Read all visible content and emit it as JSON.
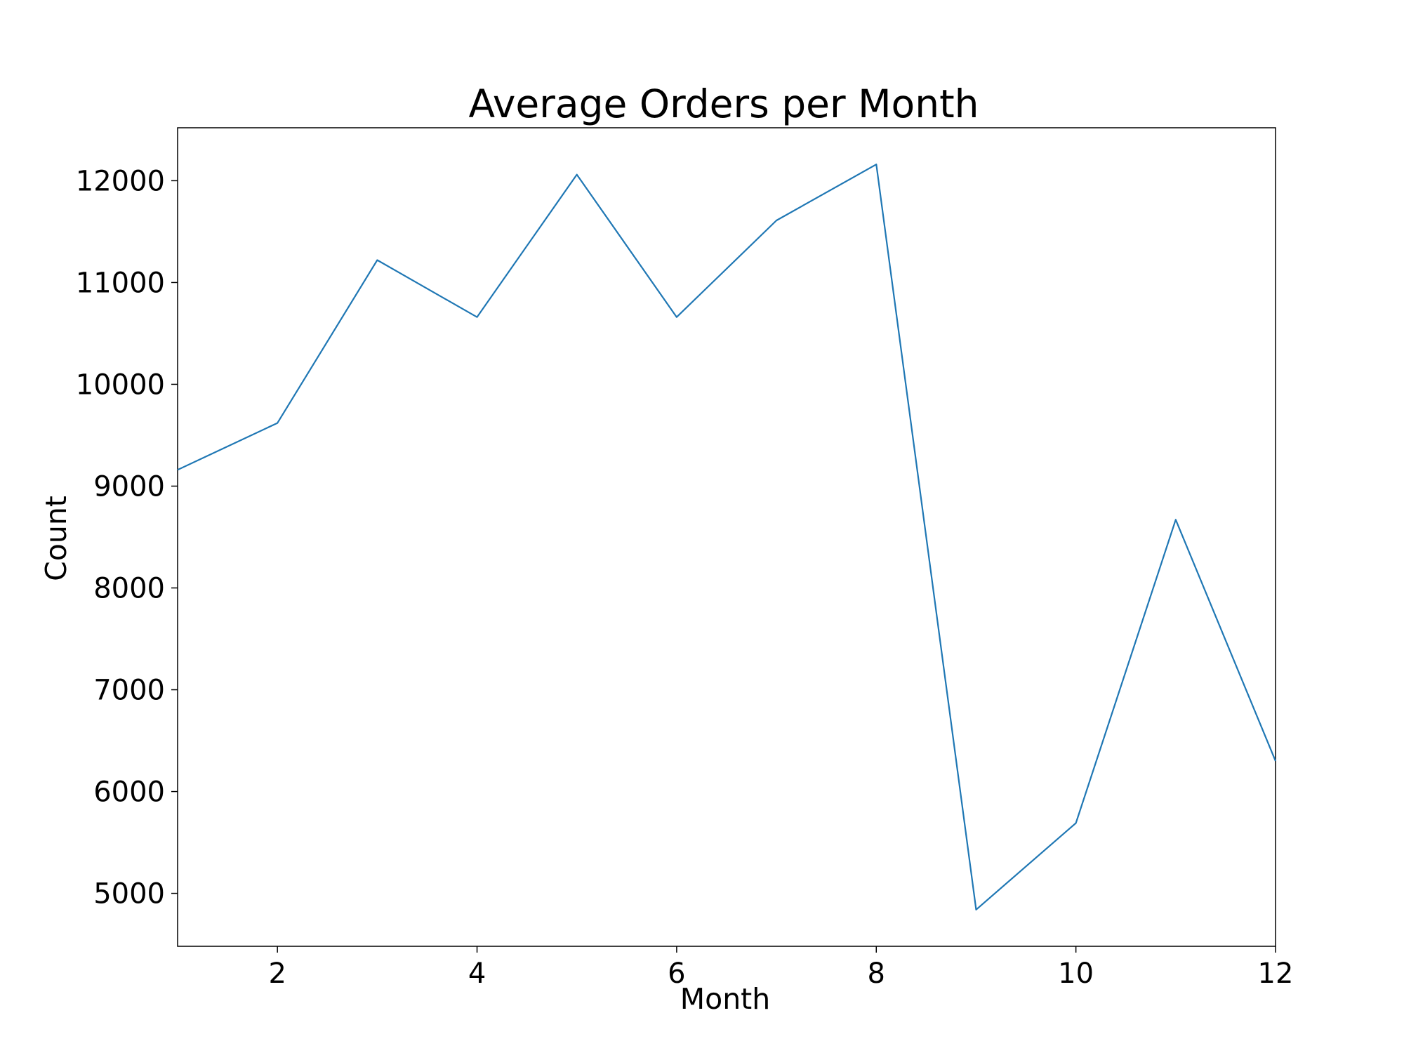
{
  "chart_data": {
    "type": "line",
    "title": "Average Orders per Month",
    "xlabel": "Month",
    "ylabel": "Count",
    "xlim": [
      1,
      12
    ],
    "ylim": [
      4480,
      12520
    ],
    "x_ticks": [
      2,
      4,
      6,
      8,
      10,
      12
    ],
    "y_ticks": [
      5000,
      6000,
      7000,
      8000,
      9000,
      10000,
      11000,
      12000
    ],
    "grid": false,
    "legend": "none",
    "line_color": "#1f77b4",
    "series": [
      {
        "x": [
          1,
          2,
          3,
          4,
          5,
          6,
          7,
          8,
          9,
          10,
          11,
          12
        ],
        "values": [
          9160,
          9620,
          11220,
          10660,
          12060,
          10660,
          11610,
          12160,
          4840,
          5690,
          8670,
          6300
        ]
      }
    ]
  }
}
